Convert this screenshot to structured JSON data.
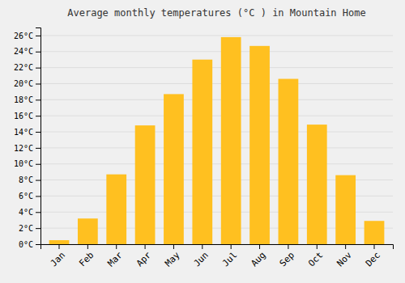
{
  "chart_data": {
    "type": "bar",
    "title": "Average monthly temperatures (°C ) in Mountain Home",
    "categories": [
      "Jan",
      "Feb",
      "Mar",
      "Apr",
      "May",
      "Jun",
      "Jul",
      "Aug",
      "Sep",
      "Oct",
      "Nov",
      "Dec"
    ],
    "values": [
      0.5,
      3.2,
      8.7,
      14.8,
      18.7,
      23.0,
      25.8,
      24.7,
      20.6,
      14.9,
      8.6,
      2.9
    ],
    "color": "#FFC020",
    "ylim": [
      0,
      27
    ],
    "yticks": [
      {
        "value": 0,
        "label": "0°C"
      },
      {
        "value": 2,
        "label": "2°C"
      },
      {
        "value": 4,
        "label": "4°C"
      },
      {
        "value": 6,
        "label": "6°C"
      },
      {
        "value": 8,
        "label": "8°C"
      },
      {
        "value": 10,
        "label": "10°C"
      },
      {
        "value": 12,
        "label": "12°C"
      },
      {
        "value": 14,
        "label": "14°C"
      },
      {
        "value": 16,
        "label": "16°C"
      },
      {
        "value": 18,
        "label": "18°C"
      },
      {
        "value": 20,
        "label": "20°C"
      },
      {
        "value": 22,
        "label": "22°C"
      },
      {
        "value": 24,
        "label": "24°C"
      },
      {
        "value": 26,
        "label": "26°C"
      }
    ],
    "grid": true
  }
}
